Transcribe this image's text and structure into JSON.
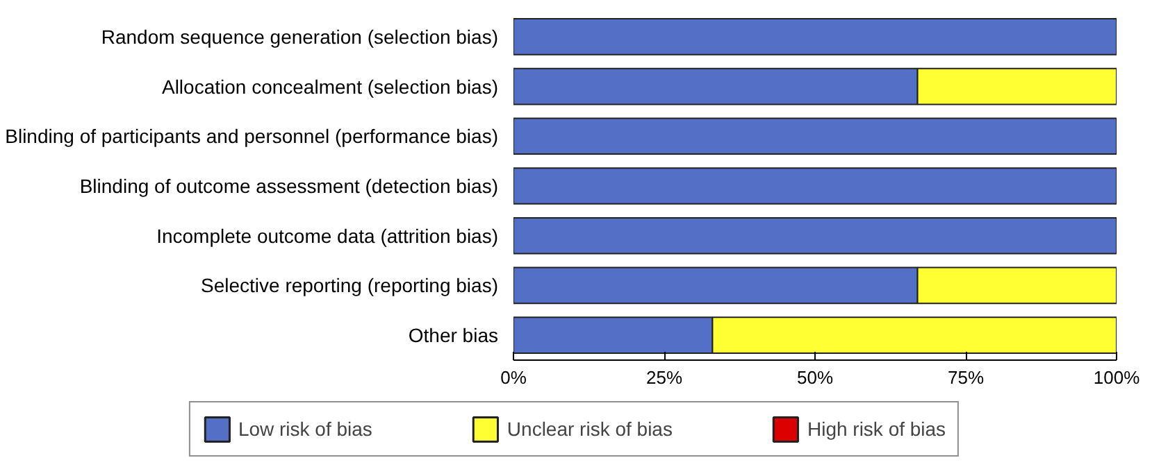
{
  "chart_data": {
    "type": "bar",
    "orientation": "horizontal",
    "stacked": true,
    "categories": [
      "Random sequence generation (selection bias)",
      "Allocation concealment (selection bias)",
      "Blinding of participants and personnel (performance bias)",
      "Blinding of outcome assessment (detection bias)",
      "Incomplete outcome data (attrition bias)",
      "Selective reporting (reporting bias)",
      "Other bias"
    ],
    "series": [
      {
        "name": "Low risk of bias",
        "color": "#5470c6",
        "values": [
          100,
          67,
          100,
          100,
          100,
          67,
          33
        ]
      },
      {
        "name": "Unclear risk of bias",
        "color": "#ffff33",
        "values": [
          0,
          33,
          0,
          0,
          0,
          33,
          67
        ]
      },
      {
        "name": "High risk of bias",
        "color": "#dd0000",
        "values": [
          0,
          0,
          0,
          0,
          0,
          0,
          0
        ]
      }
    ],
    "xlim": [
      0,
      100
    ],
    "xticks": [
      {
        "value": 0,
        "label": "0%"
      },
      {
        "value": 25,
        "label": "25%"
      },
      {
        "value": 50,
        "label": "50%"
      },
      {
        "value": 75,
        "label": "75%"
      },
      {
        "value": 100,
        "label": "100%"
      }
    ],
    "grid": false,
    "legend": "bottom"
  }
}
